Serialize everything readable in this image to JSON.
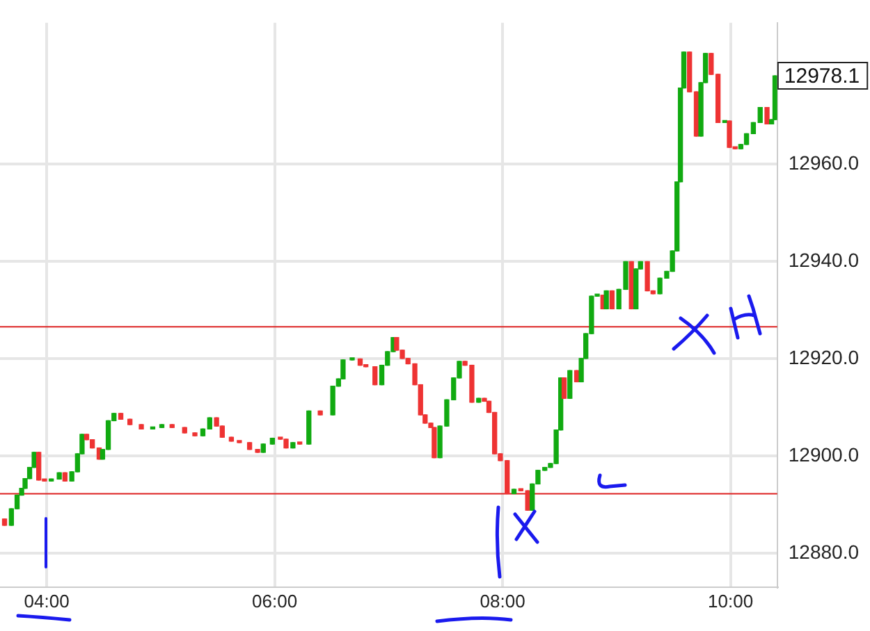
{
  "chart_data": {
    "type": "candlestick",
    "x": [
      3.63,
      3.69,
      3.74,
      3.78,
      3.81,
      3.85,
      3.89,
      3.93,
      3.98,
      4.04,
      4.11,
      4.16,
      4.22,
      4.27,
      4.31,
      4.35,
      4.4,
      4.46,
      4.49,
      4.54,
      4.59,
      4.65,
      4.73,
      4.83,
      4.93,
      5.01,
      5.1,
      5.21,
      5.3,
      5.37,
      5.43,
      5.49,
      5.54,
      5.62,
      5.69,
      5.78,
      5.85,
      5.9,
      5.98,
      6.05,
      6.1,
      6.16,
      6.22,
      6.3,
      6.4,
      6.51,
      6.56,
      6.6,
      6.68,
      6.75,
      6.8,
      6.88,
      6.94,
      6.99,
      7.04,
      7.07,
      7.12,
      7.17,
      7.23,
      7.28,
      7.32,
      7.37,
      7.4,
      7.45,
      7.51,
      7.57,
      7.62,
      7.67,
      7.73,
      7.79,
      7.84,
      7.88,
      7.93,
      7.98,
      8.04,
      8.1,
      8.16,
      8.22,
      8.26,
      8.31,
      8.37,
      8.42,
      8.47,
      8.51,
      8.54,
      8.59,
      8.65,
      8.69,
      8.73,
      8.78,
      8.83,
      8.88,
      8.91,
      8.96,
      9.02,
      9.08,
      9.13,
      9.17,
      9.21,
      9.27,
      9.32,
      9.38,
      9.44,
      9.49,
      9.53,
      9.56,
      9.59,
      9.64,
      9.7,
      9.74,
      9.78,
      9.83,
      9.89,
      9.95,
      9.99,
      10.04,
      10.09,
      10.14,
      10.2,
      10.26,
      10.32,
      10.36,
      10.39
    ],
    "ohlc": [
      [
        12887.0,
        12887.0,
        12885.7,
        12885.7
      ],
      [
        12885.7,
        12889.1,
        12885.7,
        12889.1
      ],
      [
        12889.1,
        12891.9,
        12889.1,
        12891.9
      ],
      [
        12891.9,
        12893.3,
        12891.9,
        12893.3
      ],
      [
        12893.3,
        12895.3,
        12893.3,
        12895.3
      ],
      [
        12895.3,
        12897.6,
        12895.3,
        12897.6
      ],
      [
        12897.6,
        12900.7,
        12897.6,
        12900.7
      ],
      [
        12900.7,
        12900.7,
        12895.0,
        12895.0
      ],
      [
        12895.0,
        12895.0,
        12894.8,
        12894.8
      ],
      [
        12894.8,
        12895.2,
        12894.8,
        12895.2
      ],
      [
        12895.2,
        12896.5,
        12895.2,
        12896.5
      ],
      [
        12896.5,
        12896.5,
        12894.8,
        12894.8
      ],
      [
        12894.8,
        12896.7,
        12894.8,
        12896.7
      ],
      [
        12896.7,
        12900.4,
        12896.7,
        12900.4
      ],
      [
        12900.4,
        12904.4,
        12900.4,
        12904.4
      ],
      [
        12904.4,
        12904.4,
        12903.3,
        12903.3
      ],
      [
        12903.3,
        12903.3,
        12901.6,
        12901.6
      ],
      [
        12901.6,
        12901.6,
        12899.3,
        12899.3
      ],
      [
        12899.3,
        12901.3,
        12899.3,
        12901.3
      ],
      [
        12901.3,
        12907.2,
        12901.3,
        12907.2
      ],
      [
        12907.2,
        12908.7,
        12907.2,
        12908.7
      ],
      [
        12908.7,
        12908.7,
        12907.5,
        12907.5
      ],
      [
        12907.5,
        12907.5,
        12906.4,
        12906.4
      ],
      [
        12906.4,
        12906.4,
        12905.5,
        12905.5
      ],
      [
        12905.5,
        12905.8,
        12905.5,
        12905.8
      ],
      [
        12905.8,
        12906.4,
        12905.8,
        12906.4
      ],
      [
        12906.4,
        12906.4,
        12905.8,
        12905.8
      ],
      [
        12905.8,
        12905.8,
        12904.7,
        12904.7
      ],
      [
        12904.7,
        12904.7,
        12904.1,
        12904.1
      ],
      [
        12904.1,
        12905.5,
        12904.1,
        12905.5
      ],
      [
        12905.5,
        12907.8,
        12905.5,
        12907.8
      ],
      [
        12907.8,
        12907.8,
        12906.1,
        12906.1
      ],
      [
        12906.1,
        12906.1,
        12903.8,
        12903.8
      ],
      [
        12903.8,
        12903.8,
        12903.0,
        12903.0
      ],
      [
        12903.0,
        12903.0,
        12902.7,
        12902.7
      ],
      [
        12902.7,
        12902.7,
        12901.3,
        12901.3
      ],
      [
        12901.3,
        12901.3,
        12900.7,
        12900.7
      ],
      [
        12900.7,
        12902.4,
        12900.7,
        12902.4
      ],
      [
        12902.4,
        12903.6,
        12902.4,
        12903.6
      ],
      [
        12903.6,
        12903.6,
        12903.4,
        12903.4
      ],
      [
        12903.4,
        12903.4,
        12901.6,
        12901.6
      ],
      [
        12901.6,
        12902.7,
        12901.6,
        12902.7
      ],
      [
        12902.7,
        12902.7,
        12902.4,
        12902.4
      ],
      [
        12902.4,
        12909.2,
        12902.4,
        12909.2
      ],
      [
        12909.2,
        12909.2,
        12908.4,
        12908.4
      ],
      [
        12908.4,
        12914.3,
        12908.4,
        12914.3
      ],
      [
        12914.3,
        12915.8,
        12914.3,
        12915.8
      ],
      [
        12915.8,
        12919.7,
        12915.8,
        12919.7
      ],
      [
        12919.7,
        12919.9,
        12919.7,
        12919.9
      ],
      [
        12919.9,
        12919.9,
        12918.6,
        12918.6
      ],
      [
        12918.6,
        12918.6,
        12918.3,
        12918.3
      ],
      [
        12918.3,
        12918.3,
        12914.6,
        12914.6
      ],
      [
        12914.6,
        12918.6,
        12914.6,
        12918.6
      ],
      [
        12918.6,
        12921.4,
        12918.6,
        12921.4
      ],
      [
        12921.4,
        12924.3,
        12921.4,
        12924.3
      ],
      [
        12924.3,
        12924.3,
        12921.7,
        12921.7
      ],
      [
        12921.7,
        12921.7,
        12920.0,
        12920.0
      ],
      [
        12920.0,
        12920.0,
        12918.9,
        12918.9
      ],
      [
        12918.9,
        12918.9,
        12914.6,
        12914.6
      ],
      [
        12914.6,
        12914.6,
        12908.4,
        12908.4
      ],
      [
        12908.4,
        12908.4,
        12906.7,
        12906.7
      ],
      [
        12906.7,
        12906.7,
        12905.8,
        12905.8
      ],
      [
        12905.8,
        12905.8,
        12899.6,
        12899.6
      ],
      [
        12899.6,
        12906.1,
        12899.6,
        12906.1
      ],
      [
        12906.1,
        12911.5,
        12906.1,
        12911.5
      ],
      [
        12911.5,
        12916.0,
        12911.5,
        12916.0
      ],
      [
        12916.0,
        12919.4,
        12916.0,
        12919.4
      ],
      [
        12919.4,
        12919.4,
        12918.6,
        12918.6
      ],
      [
        12918.6,
        12918.6,
        12911.0,
        12911.0
      ],
      [
        12911.0,
        12911.8,
        12911.0,
        12911.8
      ],
      [
        12911.8,
        12911.8,
        12911.2,
        12911.2
      ],
      [
        12911.2,
        12911.2,
        12908.9,
        12908.9
      ],
      [
        12908.9,
        12908.9,
        12900.4,
        12900.4
      ],
      [
        12900.4,
        12900.4,
        12899.0,
        12899.0
      ],
      [
        12899.0,
        12899.0,
        12892.2,
        12892.2
      ],
      [
        12892.2,
        12893.1,
        12892.2,
        12893.1
      ],
      [
        12893.1,
        12893.1,
        12892.8,
        12892.8
      ],
      [
        12892.8,
        12892.8,
        12888.8,
        12888.8
      ],
      [
        12888.8,
        12894.2,
        12888.8,
        12894.2
      ],
      [
        12894.2,
        12897.0,
        12894.2,
        12897.0
      ],
      [
        12897.0,
        12897.6,
        12897.0,
        12897.6
      ],
      [
        12897.6,
        12898.4,
        12897.6,
        12898.4
      ],
      [
        12898.4,
        12905.3,
        12898.4,
        12905.3
      ],
      [
        12905.3,
        12916.0,
        12905.3,
        12916.0
      ],
      [
        12916.0,
        12916.0,
        12911.8,
        12911.8
      ],
      [
        12911.8,
        12917.5,
        12911.8,
        12917.5
      ],
      [
        12917.5,
        12917.5,
        12915.2,
        12915.2
      ],
      [
        12915.2,
        12920.0,
        12915.2,
        12920.0
      ],
      [
        12920.0,
        12925.1,
        12920.0,
        12925.1
      ],
      [
        12925.1,
        12932.8,
        12925.1,
        12932.8
      ],
      [
        12932.8,
        12933.0,
        12932.8,
        12933.0
      ],
      [
        12933.0,
        12933.0,
        12930.2,
        12930.2
      ],
      [
        12930.2,
        12933.9,
        12930.2,
        12933.9
      ],
      [
        12933.9,
        12933.9,
        12930.2,
        12930.2
      ],
      [
        12930.2,
        12934.2,
        12930.2,
        12934.2
      ],
      [
        12934.2,
        12939.9,
        12934.2,
        12939.9
      ],
      [
        12939.9,
        12939.9,
        12930.2,
        12930.2
      ],
      [
        12930.2,
        12938.4,
        12930.2,
        12938.4
      ],
      [
        12938.4,
        12939.9,
        12938.4,
        12939.9
      ],
      [
        12939.9,
        12939.9,
        12933.9,
        12933.9
      ],
      [
        12933.9,
        12933.9,
        12933.3,
        12933.3
      ],
      [
        12933.3,
        12936.5,
        12933.3,
        12936.5
      ],
      [
        12936.5,
        12937.9,
        12936.5,
        12937.9
      ],
      [
        12937.9,
        12942.1,
        12937.9,
        12942.1
      ],
      [
        12942.1,
        12956.3,
        12942.1,
        12956.3
      ],
      [
        12956.3,
        12975.6,
        12956.3,
        12975.6
      ],
      [
        12975.6,
        12983.0,
        12975.6,
        12983.0
      ],
      [
        12983.0,
        12983.0,
        12974.8,
        12974.8
      ],
      [
        12974.8,
        12974.8,
        12965.7,
        12965.7
      ],
      [
        12965.7,
        12976.7,
        12965.7,
        12976.7
      ],
      [
        12976.7,
        12982.7,
        12976.7,
        12982.7
      ],
      [
        12982.7,
        12982.7,
        12978.4,
        12978.4
      ],
      [
        12978.4,
        12978.4,
        12968.5,
        12968.5
      ],
      [
        12968.5,
        12968.8,
        12968.5,
        12968.8
      ],
      [
        12968.8,
        12968.8,
        12963.4,
        12963.4
      ],
      [
        12963.4,
        12963.4,
        12963.1,
        12963.1
      ],
      [
        12963.1,
        12964.0,
        12963.1,
        12964.0
      ],
      [
        12964.0,
        12966.2,
        12964.0,
        12966.2
      ],
      [
        12966.2,
        12968.5,
        12966.2,
        12968.5
      ],
      [
        12968.5,
        12971.6,
        12968.5,
        12971.6
      ],
      [
        12971.6,
        12971.6,
        12968.2,
        12968.2
      ],
      [
        12968.2,
        12969.1,
        12968.2,
        12969.1
      ],
      [
        12969.1,
        12978.1,
        12969.1,
        12978.1
      ]
    ],
    "colors": [
      "#ee3333",
      "#11aa11",
      "#11aa11",
      "#11aa11",
      "#11aa11",
      "#11aa11",
      "#11aa11",
      "#ee3333",
      "#ee3333",
      "#11aa11",
      "#11aa11",
      "#ee3333",
      "#11aa11",
      "#11aa11",
      "#11aa11",
      "#ee3333",
      "#ee3333",
      "#ee3333",
      "#11aa11",
      "#11aa11",
      "#11aa11",
      "#ee3333",
      "#ee3333",
      "#ee3333",
      "#11aa11",
      "#11aa11",
      "#ee3333",
      "#ee3333",
      "#ee3333",
      "#11aa11",
      "#11aa11",
      "#ee3333",
      "#ee3333",
      "#ee3333",
      "#ee3333",
      "#ee3333",
      "#ee3333",
      "#11aa11",
      "#11aa11",
      "#ee3333",
      "#ee3333",
      "#11aa11",
      "#ee3333",
      "#11aa11",
      "#ee3333",
      "#11aa11",
      "#11aa11",
      "#11aa11",
      "#11aa11",
      "#ee3333",
      "#ee3333",
      "#ee3333",
      "#11aa11",
      "#11aa11",
      "#11aa11",
      "#ee3333",
      "#ee3333",
      "#ee3333",
      "#ee3333",
      "#ee3333",
      "#ee3333",
      "#ee3333",
      "#ee3333",
      "#11aa11",
      "#11aa11",
      "#11aa11",
      "#11aa11",
      "#ee3333",
      "#ee3333",
      "#11aa11",
      "#ee3333",
      "#ee3333",
      "#ee3333",
      "#ee3333",
      "#ee3333",
      "#11aa11",
      "#ee3333",
      "#ee3333",
      "#11aa11",
      "#11aa11",
      "#11aa11",
      "#11aa11",
      "#11aa11",
      "#11aa11",
      "#ee3333",
      "#11aa11",
      "#ee3333",
      "#11aa11",
      "#11aa11",
      "#11aa11",
      "#11aa11",
      "#ee3333",
      "#11aa11",
      "#ee3333",
      "#11aa11",
      "#11aa11",
      "#ee3333",
      "#11aa11",
      "#11aa11",
      "#ee3333",
      "#ee3333",
      "#11aa11",
      "#11aa11",
      "#11aa11",
      "#11aa11",
      "#11aa11",
      "#11aa11",
      "#ee3333",
      "#ee3333",
      "#11aa11",
      "#11aa11",
      "#ee3333",
      "#ee3333",
      "#11aa11",
      "#ee3333",
      "#ee3333",
      "#11aa11",
      "#11aa11",
      "#11aa11",
      "#11aa11",
      "#ee3333",
      "#11aa11",
      "#11aa11"
    ],
    "xlim": [
      3.59,
      10.41
    ],
    "ylim": [
      12873,
      12989
    ],
    "xticks": [
      {
        "value": 4,
        "label": "04:00"
      },
      {
        "value": 6,
        "label": "06:00"
      },
      {
        "value": 8,
        "label": "08:00"
      },
      {
        "value": 10,
        "label": "10:00"
      }
    ],
    "yticks": [
      {
        "value": 12880,
        "label": "12880.0"
      },
      {
        "value": 12900,
        "label": "12900.0"
      },
      {
        "value": 12920,
        "label": "12920.0"
      },
      {
        "value": 12940,
        "label": "12940.0"
      },
      {
        "value": 12960,
        "label": "12960.0"
      }
    ],
    "ref_lines": [
      {
        "axis": "y",
        "value": 12926.5,
        "color": "#dd2222"
      },
      {
        "axis": "y",
        "value": 12892.2,
        "color": "#dd2222"
      }
    ],
    "annotations": [
      "12978.1"
    ],
    "grid": true,
    "legend": false
  }
}
